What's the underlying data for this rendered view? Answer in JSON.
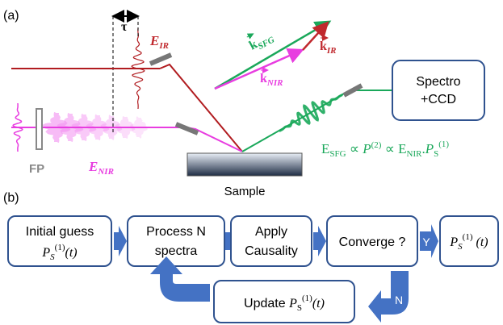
{
  "panel_a": {
    "label": "(a)",
    "delay": "τ",
    "e_ir": {
      "base": "E",
      "sub": "IR"
    },
    "k_sfg": {
      "base": "k",
      "sub": "SFG"
    },
    "k_ir": {
      "base": "k",
      "sub": "IR"
    },
    "k_nir": {
      "base": "k",
      "sub": "NIR"
    },
    "spectrometer": [
      "Spectro",
      "+CCD"
    ],
    "fp": "FP",
    "e_nir": {
      "base": "E",
      "sub": "NIR"
    },
    "sample": "Sample",
    "equation": [
      "E",
      "SFG",
      " ∝ ",
      "P",
      "(2)",
      " ∝ ",
      "E",
      "NIR",
      ".",
      "P",
      "S",
      "(1)"
    ]
  },
  "panel_b": {
    "label": "(b)",
    "initial": {
      "text": "Initial guess",
      "formula": [
        "P",
        "S",
        "(1)",
        "(t)"
      ]
    },
    "process": [
      "Process N",
      "spectra"
    ],
    "causality": [
      "Apply",
      "Causality"
    ],
    "converge": "Converge ?",
    "yes": "Y",
    "result": [
      "P",
      "S",
      "(1)",
      " (t)"
    ],
    "update": {
      "text": "Update ",
      "formula": [
        "P",
        "S",
        "(1)",
        "(t)"
      ]
    },
    "no": "N"
  }
}
